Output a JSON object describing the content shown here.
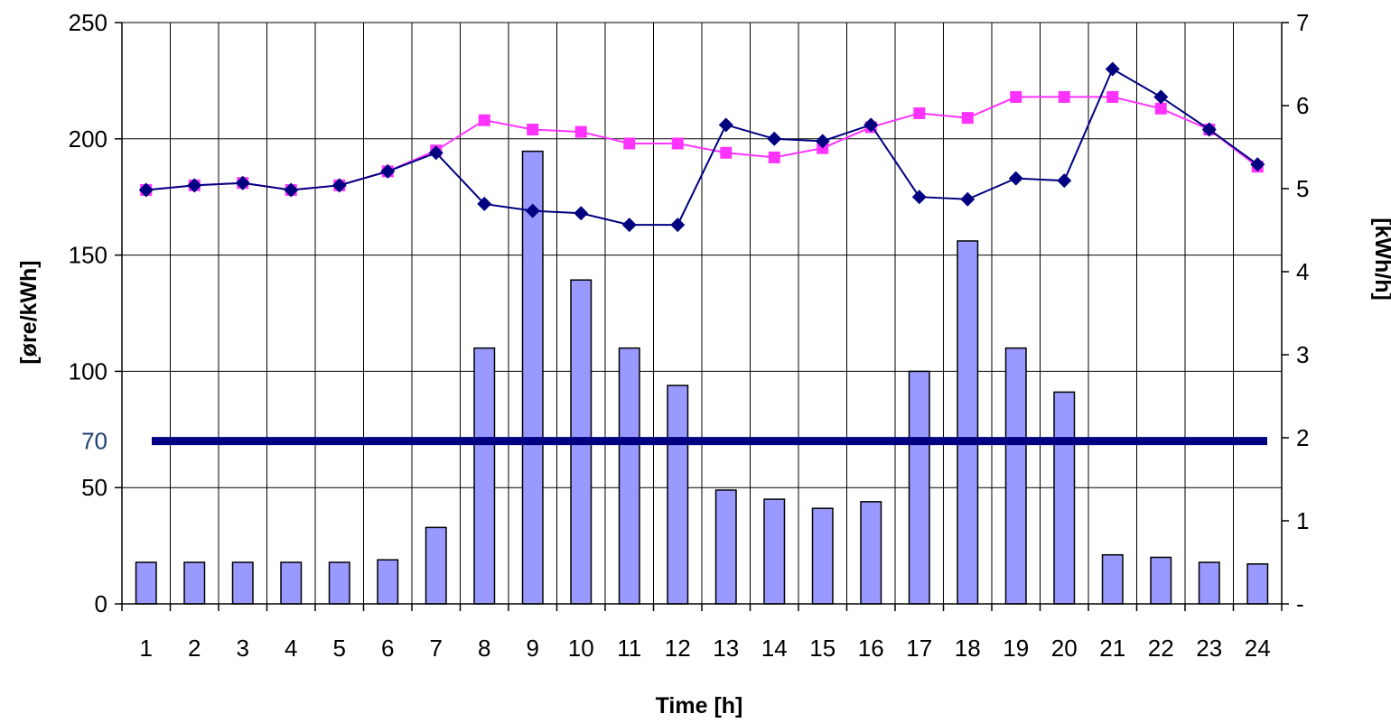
{
  "chart_data": {
    "type": "bar",
    "title": "",
    "xlabel": "Time [h]",
    "ylabel_left": "[øre/kWh]",
    "ylabel_right": "[kWh/h]",
    "categories": [
      "1",
      "2",
      "3",
      "4",
      "5",
      "6",
      "7",
      "8",
      "9",
      "10",
      "11",
      "12",
      "13",
      "14",
      "15",
      "16",
      "17",
      "18",
      "19",
      "20",
      "21",
      "22",
      "23",
      "24"
    ],
    "left_axis": {
      "ylim": [
        0,
        250
      ],
      "ticks": [
        "0",
        "50",
        "100",
        "150",
        "200",
        "250"
      ],
      "highlight_tick": {
        "value": 70,
        "label": "70"
      }
    },
    "right_axis": {
      "ylim": [
        0,
        7
      ],
      "ticks": [
        "-",
        "1",
        "2",
        "3",
        "4",
        "5",
        "6",
        "7"
      ]
    },
    "grid": true,
    "legend": "none",
    "series": [
      {
        "type": "bar",
        "axis": "right",
        "color": "#9999ff",
        "values": [
          0.5,
          0.5,
          0.5,
          0.5,
          0.5,
          0.53,
          0.92,
          3.08,
          5.45,
          3.9,
          3.08,
          2.63,
          1.37,
          1.26,
          1.15,
          1.23,
          2.8,
          4.37,
          3.08,
          2.55,
          0.59,
          0.56,
          0.5,
          0.48
        ]
      },
      {
        "type": "line",
        "axis": "left",
        "color": "#ff33ff",
        "marker": "square",
        "values": [
          178,
          180,
          181,
          178,
          180,
          186,
          195,
          208,
          204,
          203,
          198,
          198,
          194,
          192,
          196,
          205,
          211,
          209,
          218,
          218,
          218,
          213,
          204,
          188
        ]
      },
      {
        "type": "line",
        "axis": "left",
        "color": "#000080",
        "marker": "diamond",
        "values": [
          178,
          180,
          181,
          178,
          180,
          186,
          194,
          172,
          169,
          168,
          163,
          163,
          206,
          200,
          199,
          206,
          175,
          174,
          183,
          182,
          230,
          218,
          204,
          189
        ]
      },
      {
        "type": "hline",
        "axis": "left",
        "color": "#000080",
        "value": 70
      }
    ]
  }
}
